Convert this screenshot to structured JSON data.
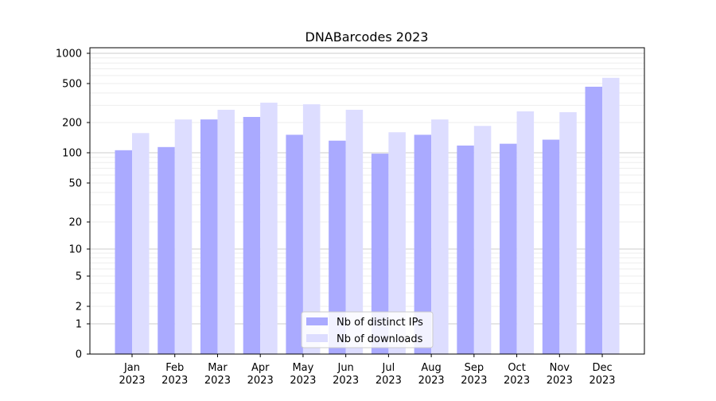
{
  "chart_data": {
    "type": "bar",
    "title": "DNABarcodes 2023",
    "xlabel": "",
    "ylabel": "",
    "yscale": "symlog",
    "ylim": [
      0,
      1200
    ],
    "yticks": [
      0,
      1,
      2,
      5,
      10,
      20,
      50,
      100,
      200,
      500,
      1000
    ],
    "grid": true,
    "legend_position": "bottom-center",
    "categories": [
      "Jan\n2023",
      "Feb\n2023",
      "Mar\n2023",
      "Apr\n2023",
      "May\n2023",
      "Jun\n2023",
      "Jul\n2023",
      "Aug\n2023",
      "Sep\n2023",
      "Oct\n2023",
      "Nov\n2023",
      "Dec\n2023"
    ],
    "series": [
      {
        "name": "Nb of distinct IPs",
        "color": "#aaaaff",
        "values": [
          106,
          114,
          215,
          228,
          151,
          132,
          98,
          151,
          118,
          123,
          135,
          464
        ]
      },
      {
        "name": "Nb of downloads",
        "color": "#ddddff",
        "values": [
          157,
          215,
          270,
          319,
          307,
          270,
          160,
          215,
          185,
          260,
          255,
          570
        ]
      }
    ]
  }
}
